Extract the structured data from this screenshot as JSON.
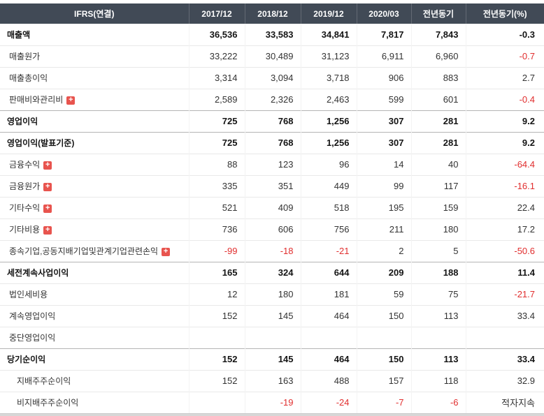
{
  "colors": {
    "header_bg": "#414a56",
    "negative": "#e12e2e",
    "expand_icon_bg": "#e8544e"
  },
  "chart_data": {
    "type": "table",
    "title": "IFRS(연결)",
    "columns": [
      "IFRS(연결)",
      "2017/12",
      "2018/12",
      "2019/12",
      "2020/03",
      "전년동기",
      "전년동기(%)"
    ],
    "rows": [
      {
        "label": "매출액",
        "bold": true,
        "indent": 0,
        "expandable": false,
        "values": [
          "36,536",
          "33,583",
          "34,841",
          "7,817",
          "7,843",
          "-0.3"
        ]
      },
      {
        "label": "매출원가",
        "bold": false,
        "indent": 1,
        "expandable": false,
        "values": [
          "33,222",
          "30,489",
          "31,123",
          "6,911",
          "6,960",
          "-0.7"
        ]
      },
      {
        "label": "매출총이익",
        "bold": false,
        "indent": 1,
        "expandable": false,
        "values": [
          "3,314",
          "3,094",
          "3,718",
          "906",
          "883",
          "2.7"
        ]
      },
      {
        "label": "판매비와관리비",
        "bold": false,
        "indent": 1,
        "expandable": true,
        "values": [
          "2,589",
          "2,326",
          "2,463",
          "599",
          "601",
          "-0.4"
        ]
      },
      {
        "label": "영업이익",
        "bold": true,
        "indent": 0,
        "expandable": false,
        "values": [
          "725",
          "768",
          "1,256",
          "307",
          "281",
          "9.2"
        ]
      },
      {
        "label": "영업이익(발표기준)",
        "bold": true,
        "indent": 0,
        "expandable": false,
        "values": [
          "725",
          "768",
          "1,256",
          "307",
          "281",
          "9.2"
        ]
      },
      {
        "label": "금융수익",
        "bold": false,
        "indent": 1,
        "expandable": true,
        "values": [
          "88",
          "123",
          "96",
          "14",
          "40",
          "-64.4"
        ]
      },
      {
        "label": "금융원가",
        "bold": false,
        "indent": 1,
        "expandable": true,
        "values": [
          "335",
          "351",
          "449",
          "99",
          "117",
          "-16.1"
        ]
      },
      {
        "label": "기타수익",
        "bold": false,
        "indent": 1,
        "expandable": true,
        "values": [
          "521",
          "409",
          "518",
          "195",
          "159",
          "22.4"
        ]
      },
      {
        "label": "기타비용",
        "bold": false,
        "indent": 1,
        "expandable": true,
        "values": [
          "736",
          "606",
          "756",
          "211",
          "180",
          "17.2"
        ]
      },
      {
        "label": "종속기업,공동지배기업및관계기업관련손익",
        "bold": false,
        "indent": 1,
        "expandable": true,
        "values": [
          "-99",
          "-18",
          "-21",
          "2",
          "5",
          "-50.6"
        ]
      },
      {
        "label": "세전계속사업이익",
        "bold": true,
        "indent": 0,
        "expandable": false,
        "values": [
          "165",
          "324",
          "644",
          "209",
          "188",
          "11.4"
        ]
      },
      {
        "label": "법인세비용",
        "bold": false,
        "indent": 1,
        "expandable": false,
        "values": [
          "12",
          "180",
          "181",
          "59",
          "75",
          "-21.7"
        ]
      },
      {
        "label": "계속영업이익",
        "bold": false,
        "indent": 1,
        "expandable": false,
        "values": [
          "152",
          "145",
          "464",
          "150",
          "113",
          "33.4"
        ]
      },
      {
        "label": "중단영업이익",
        "bold": false,
        "indent": 1,
        "expandable": false,
        "values": [
          "",
          "",
          "",
          "",
          "",
          ""
        ]
      },
      {
        "label": "당기순이익",
        "bold": true,
        "indent": 0,
        "expandable": false,
        "values": [
          "152",
          "145",
          "464",
          "150",
          "113",
          "33.4"
        ]
      },
      {
        "label": "지배주주순이익",
        "bold": false,
        "indent": 2,
        "expandable": false,
        "values": [
          "152",
          "163",
          "488",
          "157",
          "118",
          "32.9"
        ]
      },
      {
        "label": "비지배주주순이익",
        "bold": false,
        "indent": 2,
        "expandable": false,
        "values": [
          "",
          "-19",
          "-24",
          "-7",
          "-6",
          "적자지속"
        ]
      }
    ]
  }
}
